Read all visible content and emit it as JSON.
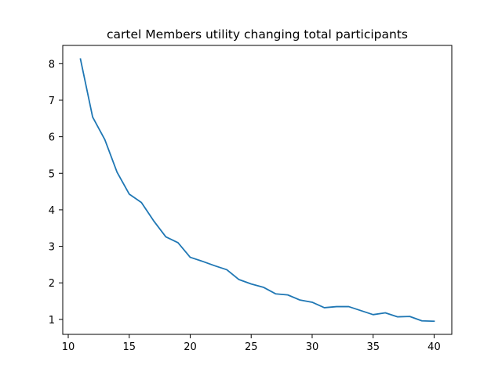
{
  "chart_data": {
    "type": "line",
    "title": "cartel Members utility changing total participants",
    "xlabel": "",
    "ylabel": "",
    "xlim": [
      9.55,
      41.45
    ],
    "ylim": [
      0.59,
      8.5
    ],
    "x_ticks": [
      10,
      15,
      20,
      25,
      30,
      35,
      40
    ],
    "y_ticks": [
      1,
      2,
      3,
      4,
      5,
      6,
      7,
      8
    ],
    "grid": false,
    "legend": "none",
    "series": [
      {
        "color": "#1f77b4",
        "x": [
          11,
          12,
          13,
          14,
          15,
          16,
          17,
          18,
          19,
          20,
          21,
          22,
          23,
          24,
          25,
          26,
          27,
          28,
          29,
          30,
          31,
          32,
          33,
          34,
          35,
          36,
          37,
          38,
          39,
          40
        ],
        "y": [
          8.13,
          6.54,
          5.92,
          5.03,
          4.43,
          4.2,
          3.7,
          3.26,
          3.1,
          2.7,
          2.59,
          2.47,
          2.36,
          2.09,
          1.97,
          1.88,
          1.7,
          1.67,
          1.53,
          1.47,
          1.32,
          1.35,
          1.35,
          1.24,
          1.13,
          1.18,
          1.07,
          1.08,
          0.96,
          0.95
        ]
      }
    ]
  }
}
